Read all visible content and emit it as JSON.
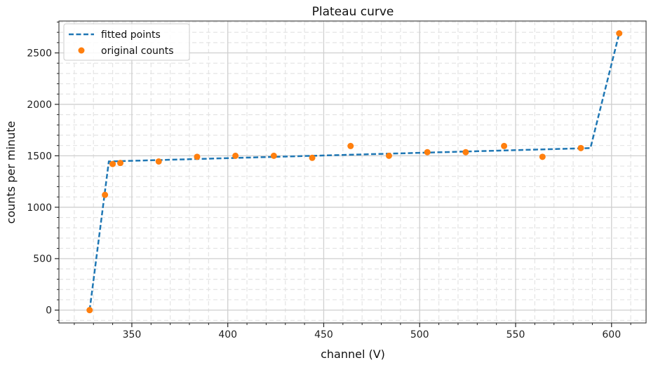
{
  "chart_data": {
    "type": "line",
    "title": "Plateau curve",
    "xlabel": "channel (V)",
    "ylabel": "counts per minute",
    "xlim": [
      312,
      618
    ],
    "ylim": [
      -125,
      2810
    ],
    "xticks": [
      350,
      400,
      450,
      500,
      550,
      600
    ],
    "yticks": [
      0,
      500,
      1000,
      1500,
      2000,
      2500
    ],
    "grid": true,
    "legend_position": "top-left",
    "series": [
      {
        "name": "fitted points",
        "kind": "dashed-line",
        "color": "#1f77b4",
        "x": [
          328,
          338,
          589,
          604
        ],
        "y": [
          0,
          1445,
          1575,
          2690
        ]
      },
      {
        "name": "original counts",
        "kind": "scatter",
        "color": "#ff7f0e",
        "x": [
          328,
          336,
          340,
          344,
          364,
          384,
          404,
          424,
          444,
          464,
          484,
          504,
          524,
          544,
          564,
          584,
          604
        ],
        "y": [
          0,
          1120,
          1420,
          1430,
          1445,
          1490,
          1500,
          1500,
          1480,
          1595,
          1500,
          1535,
          1535,
          1595,
          1490,
          1575,
          2690
        ]
      }
    ]
  }
}
